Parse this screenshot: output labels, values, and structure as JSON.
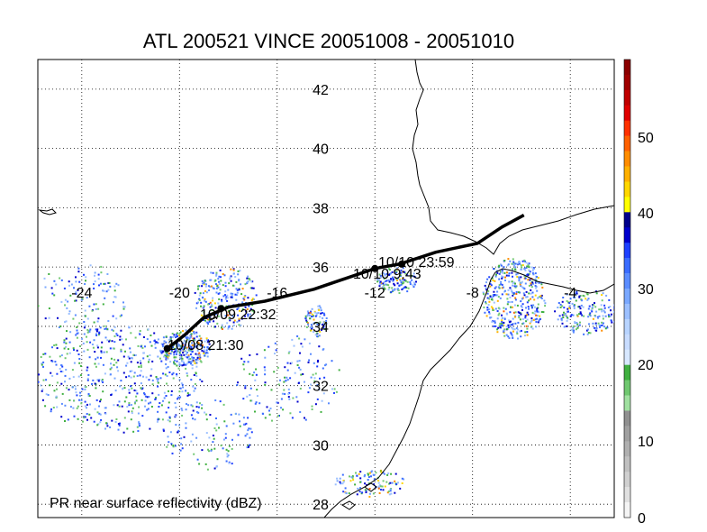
{
  "title": "ATL 200521 VINCE 20051008 - 20051010",
  "footer_label": "PR near surface reflectivity (dBZ)",
  "lon_labels": [
    "-24",
    "-20",
    "-16",
    "-12",
    "-8",
    "-4"
  ],
  "lat_labels": [
    "42",
    "40",
    "38",
    "36",
    "34",
    "32",
    "30",
    "28"
  ],
  "colorbar": {
    "labels": [
      "50",
      "40",
      "30",
      "20",
      "10",
      "0"
    ],
    "colors": [
      "#8b0000",
      "#a00000",
      "#c00000",
      "#e00000",
      "#ff3000",
      "#ff6000",
      "#ff8c00",
      "#ffb000",
      "#ffd700",
      "#ffff00",
      "#00008b",
      "#0000cd",
      "#1e40ff",
      "#3a6cff",
      "#5a8cff",
      "#7aa8ff",
      "#9cc0ff",
      "#b8d4ff",
      "#c8dcff",
      "#d8e8ff",
      "#40b040",
      "#70c870",
      "#a0e0a0",
      "#909090",
      "#a0a0a0",
      "#b0b0b0",
      "#c0c0c0",
      "#d0d0d0",
      "#e0e0e0",
      "#f4f4f4"
    ]
  },
  "track_labels": [
    {
      "text": "10/10 23:59"
    },
    {
      "text": "10/10 9:43"
    },
    {
      "text": "10/09 22:32"
    },
    {
      "text": "10/08 21:30"
    }
  ],
  "track": [
    {
      "lon": -20.5,
      "lat": 33.25
    },
    {
      "lon": -19.8,
      "lat": 33.7
    },
    {
      "lon": -19.0,
      "lat": 34.3
    },
    {
      "lon": -18.0,
      "lat": 34.65
    },
    {
      "lon": -16.5,
      "lat": 34.85
    },
    {
      "lon": -14.5,
      "lat": 35.25
    },
    {
      "lon": -12.0,
      "lat": 35.95
    },
    {
      "lon": -11.0,
      "lat": 36.1
    },
    {
      "lon": -9.5,
      "lat": 36.5
    },
    {
      "lon": -7.8,
      "lat": 36.8
    },
    {
      "lon": -6.8,
      "lat": 37.35
    },
    {
      "lon": -5.9,
      "lat": 37.75
    }
  ],
  "track_nodes": [
    {
      "lon": -20.5,
      "lat": 33.25
    },
    {
      "lon": -18.3,
      "lat": 34.6
    },
    {
      "lon": -12.0,
      "lat": 35.95
    },
    {
      "lon": -10.9,
      "lat": 36.1
    }
  ],
  "colors": {
    "track": "#000000",
    "coast": "#000000",
    "grid": "#000000"
  }
}
